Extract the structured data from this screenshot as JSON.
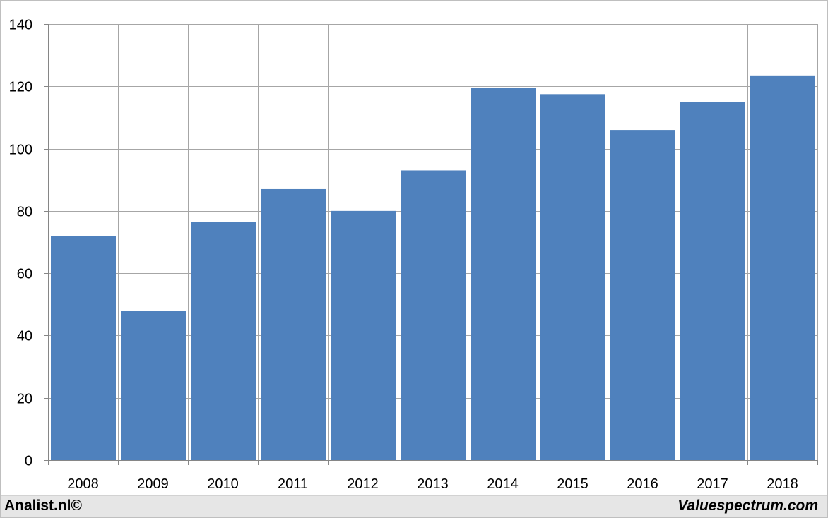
{
  "chart_data": {
    "type": "bar",
    "categories": [
      "2008",
      "2009",
      "2010",
      "2011",
      "2012",
      "2013",
      "2014",
      "2015",
      "2016",
      "2017",
      "2018"
    ],
    "values": [
      72,
      48,
      76.5,
      87,
      80,
      93,
      119.5,
      117.5,
      106,
      115,
      123.5
    ],
    "title": "",
    "xlabel": "",
    "ylabel": "",
    "ylim": [
      0,
      140
    ],
    "yticks": [
      "0",
      "20",
      "40",
      "60",
      "80",
      "100",
      "120",
      "140"
    ],
    "grid": true,
    "legend": "none"
  },
  "colors": {
    "bar": "#4f81bd",
    "grid": "#a6a6a6",
    "axis": "#868686",
    "frame": "#bfbfbf",
    "footer_band": "#e6e6e6"
  },
  "footer": {
    "left": "Analist.nl©",
    "right": "Valuespectrum.com"
  }
}
